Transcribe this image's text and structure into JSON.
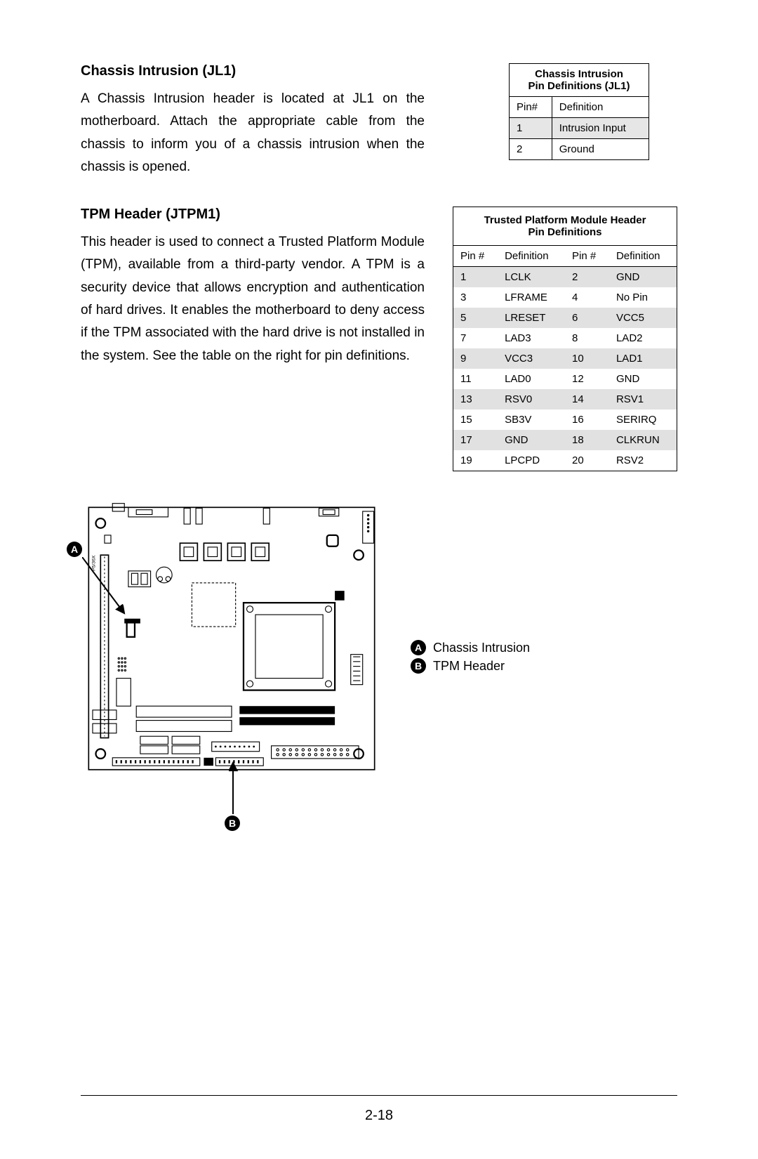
{
  "section1": {
    "heading": "Chassis Intrusion (JL1)",
    "body": "A Chassis Intrusion header is located at JL1 on the motherboard. Attach the appropriate cable from the chassis to inform you of a chassis intrusion when the chassis is opened."
  },
  "section2": {
    "heading": "TPM Header (JTPM1)",
    "body": "This header is used to connect a Trusted Platform Module (TPM), available from a third-party vendor. A TPM is a security device that allows encryption and authentication of hard drives. It enables the motherboard to deny access if the TPM associated with the hard drive is not installed in the system. See the table on the right for pin definitions."
  },
  "table1": {
    "title_line1": "Chassis Intrusion",
    "title_line2": "Pin Definitions (JL1)",
    "header_pin": "Pin#",
    "header_def": "Definition",
    "rows": [
      {
        "pin": "1",
        "def": "Intrusion Input",
        "shaded": true
      },
      {
        "pin": "2",
        "def": "Ground",
        "shaded": false
      }
    ]
  },
  "table2": {
    "title_line1": "Trusted Platform Module Header",
    "title_line2": "Pin Definitions",
    "header_pin": "Pin #",
    "header_def": "Definition",
    "rows": [
      {
        "p1": "1",
        "d1": "LCLK",
        "p2": "2",
        "d2": "GND",
        "shaded": true
      },
      {
        "p1": "3",
        "d1": "LFRAME",
        "p2": "4",
        "d2": "No Pin",
        "shaded": false
      },
      {
        "p1": "5",
        "d1": "LRESET",
        "p2": "6",
        "d2": "VCC5",
        "shaded": true
      },
      {
        "p1": "7",
        "d1": "LAD3",
        "p2": "8",
        "d2": "LAD2",
        "shaded": false
      },
      {
        "p1": "9",
        "d1": "VCC3",
        "p2": "10",
        "d2": "LAD1",
        "shaded": true
      },
      {
        "p1": "11",
        "d1": "LAD0",
        "p2": "12",
        "d2": "GND",
        "shaded": false
      },
      {
        "p1": "13",
        "d1": "RSV0",
        "p2": "14",
        "d2": "RSV1",
        "shaded": true
      },
      {
        "p1": "15",
        "d1": "SB3V",
        "p2": "16",
        "d2": "SERIRQ",
        "shaded": false
      },
      {
        "p1": "17",
        "d1": "GND",
        "p2": "18",
        "d2": "CLKRUN",
        "shaded": true
      },
      {
        "p1": "19",
        "d1": "LPCPD",
        "p2": "20",
        "d2": "RSV2",
        "shaded": false
      }
    ]
  },
  "legend": {
    "a_letter": "A",
    "a_label": "Chassis Intrusion",
    "b_letter": "B",
    "b_label": "TPM Header"
  },
  "page_number": "2-18",
  "colors": {
    "shade": "#e1e1e1",
    "text": "#000000",
    "bg": "#ffffff"
  }
}
